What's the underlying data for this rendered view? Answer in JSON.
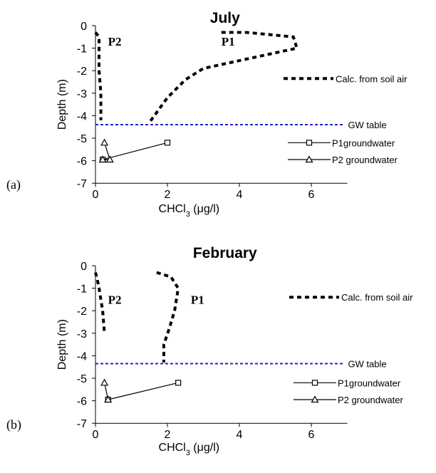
{
  "chart_data": [
    {
      "type": "line",
      "panel_label": "(a)",
      "title": "July",
      "xlabel_main": "CHCl",
      "xlabel_sub": "3",
      "xlabel_unit": " (μg/l)",
      "ylabel": "Depth (m)",
      "xlim": [
        0,
        7
      ],
      "ylim": [
        -7,
        0
      ],
      "xticks": [
        0,
        2,
        4,
        6
      ],
      "yticks": [
        0,
        -1,
        -2,
        -3,
        -4,
        -5,
        -6,
        -7
      ],
      "annotations": [
        {
          "text": "P2",
          "x": 0.35,
          "y": -0.7
        },
        {
          "text": "P1",
          "x": 3.5,
          "y": -0.7
        }
      ],
      "gw_table": -4.4,
      "series": [
        {
          "name": "Calc. from soil air",
          "role": "P2",
          "style": "dashed",
          "x": [
            0.0,
            0.1,
            0.1,
            0.1,
            0.15,
            0.15
          ],
          "y": [
            -0.3,
            -0.5,
            -1.0,
            -2.0,
            -3.0,
            -4.2
          ]
        },
        {
          "name": "Calc. from soil air",
          "role": "P1",
          "style": "dashed",
          "x": [
            3.5,
            4.2,
            5.5,
            5.6,
            3.0,
            2.5,
            2.0,
            1.5
          ],
          "y": [
            -0.3,
            -0.3,
            -0.5,
            -1.0,
            -1.9,
            -2.4,
            -3.2,
            -4.3
          ]
        },
        {
          "name": "P1groundwater",
          "marker": "square",
          "x": [
            0.2,
            2.0
          ],
          "y": [
            -5.95,
            -5.2
          ]
        },
        {
          "name": "P2 groundwater",
          "marker": "triangle",
          "x": [
            0.25,
            0.4,
            0.2
          ],
          "y": [
            -5.2,
            -5.95,
            -5.95
          ]
        }
      ],
      "legend": [
        {
          "text": "Calc. from soil air",
          "kind": "dashed"
        },
        {
          "text": "GW table",
          "kind": "gw"
        },
        {
          "text": "P1groundwater",
          "kind": "square"
        },
        {
          "text": "P2 groundwater",
          "kind": "triangle"
        }
      ]
    },
    {
      "type": "line",
      "panel_label": "(b)",
      "title": "February",
      "xlabel_main": "CHCl",
      "xlabel_sub": "3",
      "xlabel_unit": " (μg/l)",
      "ylabel": "Depth (m)",
      "xlim": [
        0,
        7
      ],
      "ylim": [
        -7,
        0
      ],
      "xticks": [
        0,
        2,
        4,
        6
      ],
      "yticks": [
        0,
        -1,
        -2,
        -3,
        -4,
        -5,
        -6,
        -7
      ],
      "annotations": [
        {
          "text": "P2",
          "x": 0.35,
          "y": -1.5
        },
        {
          "text": "P1",
          "x": 2.65,
          "y": -1.5
        }
      ],
      "gw_table": -4.35,
      "series": [
        {
          "name": "Calc. from soil air",
          "role": "P2",
          "style": "dashed",
          "x": [
            0.0,
            0.05,
            0.1,
            0.2,
            0.25
          ],
          "y": [
            -0.3,
            -0.6,
            -1.0,
            -2.0,
            -3.0
          ]
        },
        {
          "name": "Calc. from soil air",
          "role": "P1",
          "style": "dashed",
          "x": [
            1.7,
            2.1,
            2.3,
            2.2,
            2.05,
            1.9,
            1.9
          ],
          "y": [
            -0.3,
            -0.5,
            -1.0,
            -2.0,
            -2.8,
            -3.5,
            -4.3
          ]
        },
        {
          "name": "P1groundwater",
          "marker": "square",
          "x": [
            0.35,
            2.3
          ],
          "y": [
            -5.95,
            -5.2
          ]
        },
        {
          "name": "P2 groundwater",
          "marker": "triangle",
          "x": [
            0.25,
            0.35
          ],
          "y": [
            -5.2,
            -5.95
          ]
        }
      ],
      "legend": [
        {
          "text": "Calc. from soil air",
          "kind": "dashed"
        },
        {
          "text": "GW table",
          "kind": "gw"
        },
        {
          "text": "P1groundwater",
          "kind": "square"
        },
        {
          "text": "P2 groundwater",
          "kind": "triangle"
        }
      ]
    }
  ],
  "colors": {
    "gw_line": "#1f1fcf",
    "ink": "#000000"
  }
}
